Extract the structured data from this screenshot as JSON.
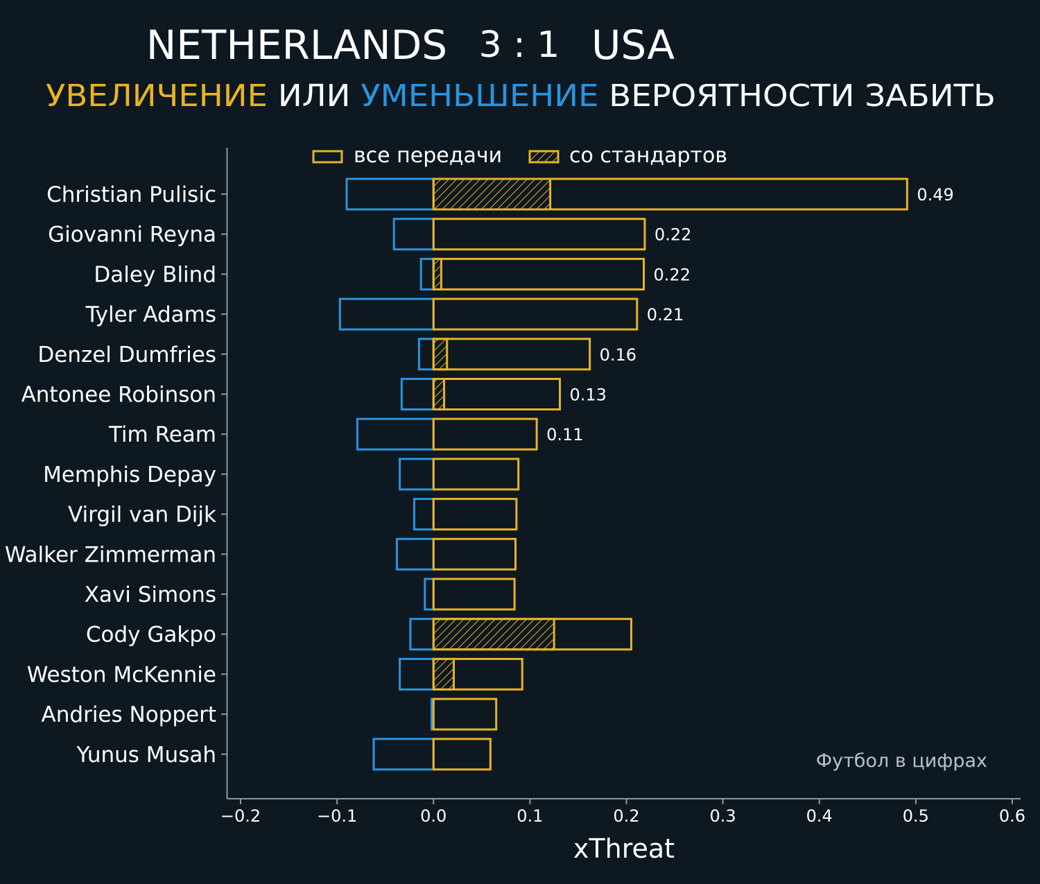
{
  "header": {
    "home_team": "NETHERLANDS",
    "score": "3 : 1",
    "away_team": "USA",
    "subtitle_part1": "УВЕЛИЧЕНИЕ",
    "subtitle_part2": " ИЛИ ",
    "subtitle_part3": "УМЕНЬШЕНИЕ",
    "subtitle_part4": " ВЕРОЯТНОСТИ ЗАБИТЬ"
  },
  "legend": {
    "all_passes": "все передачи",
    "set_pieces": "со стандартов"
  },
  "watermark": "Футбол в цифрах",
  "colors": {
    "background": "#0e1821",
    "increase": "#e7b424",
    "decrease": "#2a93e0",
    "text": "#ffffff",
    "axis": "#8b98a4"
  },
  "chart_data": {
    "type": "bar",
    "orientation": "horizontal",
    "xlabel": "xThreat",
    "ylabel": "",
    "xlim": [
      -0.2,
      0.6
    ],
    "xticks": [
      -0.2,
      -0.1,
      0.0,
      0.1,
      0.2,
      0.3,
      0.4,
      0.5,
      0.6
    ],
    "xtick_labels": [
      "−0.2",
      "−0.1",
      "0.0",
      "0.1",
      "0.2",
      "0.3",
      "0.4",
      "0.5",
      "0.6"
    ],
    "grid": false,
    "legend_position": "top",
    "categories": [
      "Christian Pulisic",
      "Giovanni Reyna",
      "Daley Blind",
      "Tyler Adams",
      "Denzel Dumfries",
      "Antonee Robinson",
      "Tim Ream",
      "Memphis Depay",
      "Virgil van Dijk",
      "Walker Zimmerman",
      "Xavi Simons",
      "Cody Gakpo",
      "Weston McKennie",
      "Andries Noppert",
      "Yunus Musah"
    ],
    "series": [
      {
        "name": "все передачи",
        "values": [
          0.491,
          0.219,
          0.218,
          0.211,
          0.162,
          0.131,
          0.107,
          0.088,
          0.086,
          0.085,
          0.084,
          0.205,
          0.092,
          0.065,
          0.059
        ]
      },
      {
        "name": "decrease",
        "values": [
          -0.09,
          -0.041,
          -0.013,
          -0.097,
          -0.015,
          -0.033,
          -0.079,
          -0.035,
          -0.02,
          -0.038,
          -0.009,
          -0.024,
          -0.035,
          -0.002,
          -0.062
        ]
      },
      {
        "name": "со стандартов",
        "values": [
          0.121,
          0.0,
          0.008,
          0.0,
          0.014,
          0.011,
          0.0,
          0.0,
          0.0,
          0.0,
          0.0,
          0.125,
          0.021,
          0.0,
          0.0
        ]
      }
    ],
    "data_labels": [
      "0.49",
      "0.22",
      "0.22",
      "0.21",
      "0.16",
      "0.13",
      "0.11",
      "",
      "",
      "",
      "",
      "",
      "",
      "",
      ""
    ]
  }
}
